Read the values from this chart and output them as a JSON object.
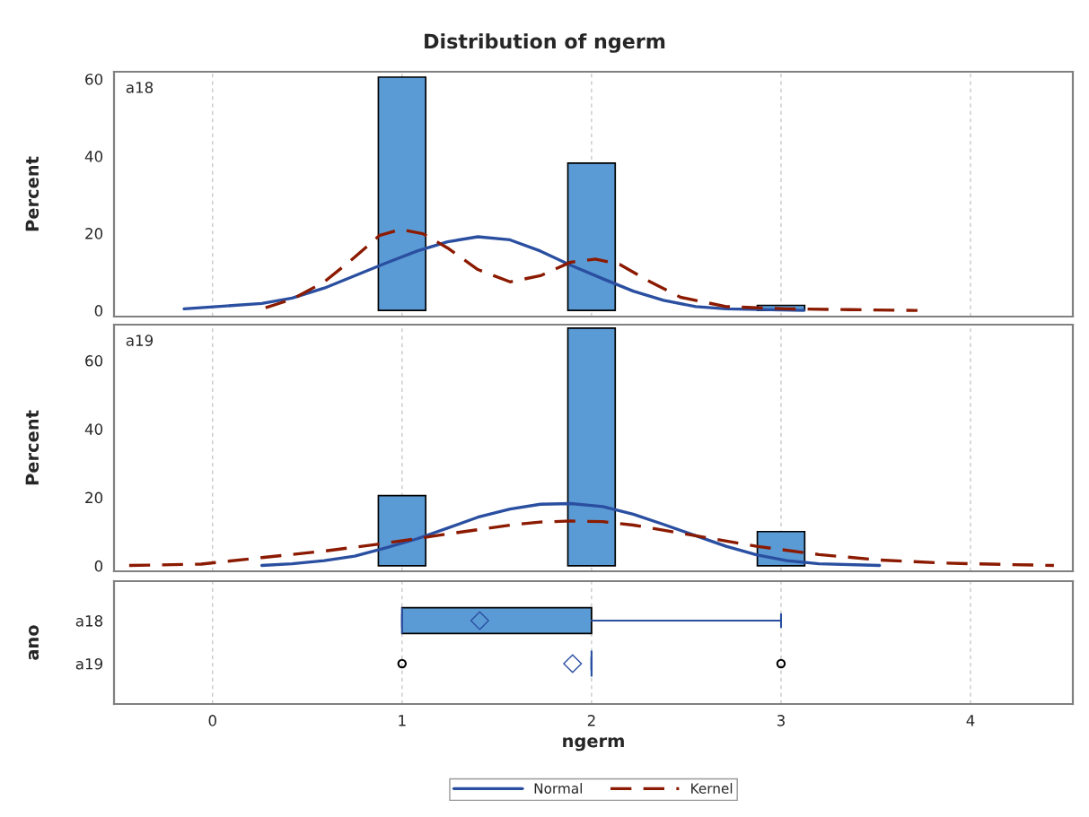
{
  "chart_data": [
    {
      "type": "histogram",
      "title": "Distribution of ngerm",
      "ylabel": "Percent",
      "annotations": [
        "a18"
      ],
      "bins": [
        0.875,
        1.125,
        1.375,
        1.625,
        1.875,
        2.125,
        2.375,
        2.625,
        2.875,
        3.125
      ],
      "values": [
        60.5,
        0,
        0,
        0,
        38.2,
        0,
        0,
        0,
        1.3
      ],
      "color": "#5b9bd5",
      "series": [
        {
          "name": "Normal",
          "type": "line",
          "color": "#2a4fa0",
          "line_style": "solid",
          "x": [
            -0.15,
            0.26,
            0.42,
            0.59,
            0.75,
            0.91,
            1.08,
            1.24,
            1.4,
            1.57,
            1.73,
            1.89,
            2.06,
            2.22,
            2.38,
            2.55,
            2.71,
            3.12
          ],
          "values": [
            0.4,
            1.8,
            3.2,
            5.8,
            9.0,
            12.2,
            15.4,
            17.8,
            19.1,
            18.3,
            15.4,
            11.7,
            8.2,
            5.0,
            2.6,
            1.0,
            0.4,
            0.0
          ]
        },
        {
          "name": "Kernel",
          "type": "line",
          "color": "#8b1a00",
          "line_style": "dashed",
          "x": [
            0.28,
            0.42,
            0.59,
            0.75,
            0.88,
            0.99,
            1.11,
            1.24,
            1.4,
            1.57,
            1.73,
            1.89,
            2.02,
            2.15,
            2.31,
            2.47,
            2.71,
            3.03,
            3.36,
            3.72
          ],
          "values": [
            0.7,
            2.9,
            7.4,
            13.8,
            19.4,
            21.0,
            19.9,
            16.2,
            10.6,
            7.4,
            9.0,
            12.5,
            13.3,
            11.9,
            7.4,
            3.4,
            1.0,
            0.4,
            0.2,
            0.0
          ]
        }
      ],
      "xlim": [
        -0.52,
        4.54
      ],
      "xticks": [
        0,
        1,
        2,
        3,
        4
      ],
      "ylim": [
        -1.6,
        61.9
      ],
      "yticks": [
        0,
        20,
        40,
        60
      ],
      "grid": "x",
      "tick_labels": "y",
      "legend": "bottom"
    },
    {
      "type": "histogram",
      "ylabel": "Percent",
      "annotations": [
        "a19"
      ],
      "bins": [
        0.875,
        1.125,
        1.375,
        1.625,
        1.875,
        2.125,
        2.375,
        2.625,
        2.875,
        3.125
      ],
      "values": [
        20.5,
        0,
        0,
        0,
        69.5,
        0,
        0,
        0,
        10.0
      ],
      "color": "#5b9bd5",
      "series": [
        {
          "type": "line",
          "color": "#2a4fa0",
          "line_style": "solid",
          "x": [
            0.26,
            0.42,
            0.59,
            0.75,
            0.91,
            1.08,
            1.24,
            1.4,
            1.57,
            1.73,
            1.89,
            2.06,
            2.22,
            2.38,
            2.55,
            2.71,
            2.87,
            3.03,
            3.2,
            3.52
          ],
          "values": [
            0.1,
            0.6,
            1.5,
            2.8,
            5.2,
            7.9,
            11.0,
            14.2,
            16.6,
            18.0,
            18.2,
            17.3,
            15.1,
            12.1,
            8.8,
            5.7,
            3.2,
            1.5,
            0.6,
            0.1
          ]
        },
        {
          "type": "line",
          "color": "#8b1a00",
          "line_style": "dashed",
          "x": [
            -0.44,
            -0.06,
            0.26,
            0.59,
            0.91,
            1.24,
            1.57,
            1.73,
            1.89,
            2.06,
            2.22,
            2.55,
            2.87,
            3.2,
            3.52,
            3.85,
            4.18,
            4.44
          ],
          "values": [
            0.1,
            0.5,
            2.4,
            4.3,
            6.6,
            9.3,
            11.9,
            12.8,
            13.1,
            12.9,
            11.9,
            8.8,
            5.7,
            3.3,
            1.7,
            0.8,
            0.4,
            0.1
          ]
        }
      ],
      "xlim": [
        -0.52,
        4.54
      ],
      "xticks": [
        0,
        1,
        2,
        3,
        4
      ],
      "ylim": [
        -1.6,
        70.5
      ],
      "yticks": [
        0,
        20,
        40,
        60
      ],
      "grid": "x",
      "tick_labels": "y"
    },
    {
      "type": "box",
      "orientation": "horizontal",
      "xlabel": "ngerm",
      "ylabel": "ano",
      "categories": [
        "a18",
        "a19"
      ],
      "color": "#5b9bd5",
      "boxes": [
        {
          "low": 1,
          "q1": 1,
          "median": 1,
          "q3": 2,
          "high": 3,
          "mean": 1.41
        },
        {
          "low": 2,
          "q1": 2,
          "median": 2,
          "q3": 2,
          "high": 2,
          "mean": 1.9,
          "outliers": [
            1,
            3
          ]
        }
      ],
      "xlim": [
        -0.52,
        4.54
      ],
      "xticks": [
        0,
        1,
        2,
        3,
        4
      ],
      "grid": "x"
    }
  ]
}
